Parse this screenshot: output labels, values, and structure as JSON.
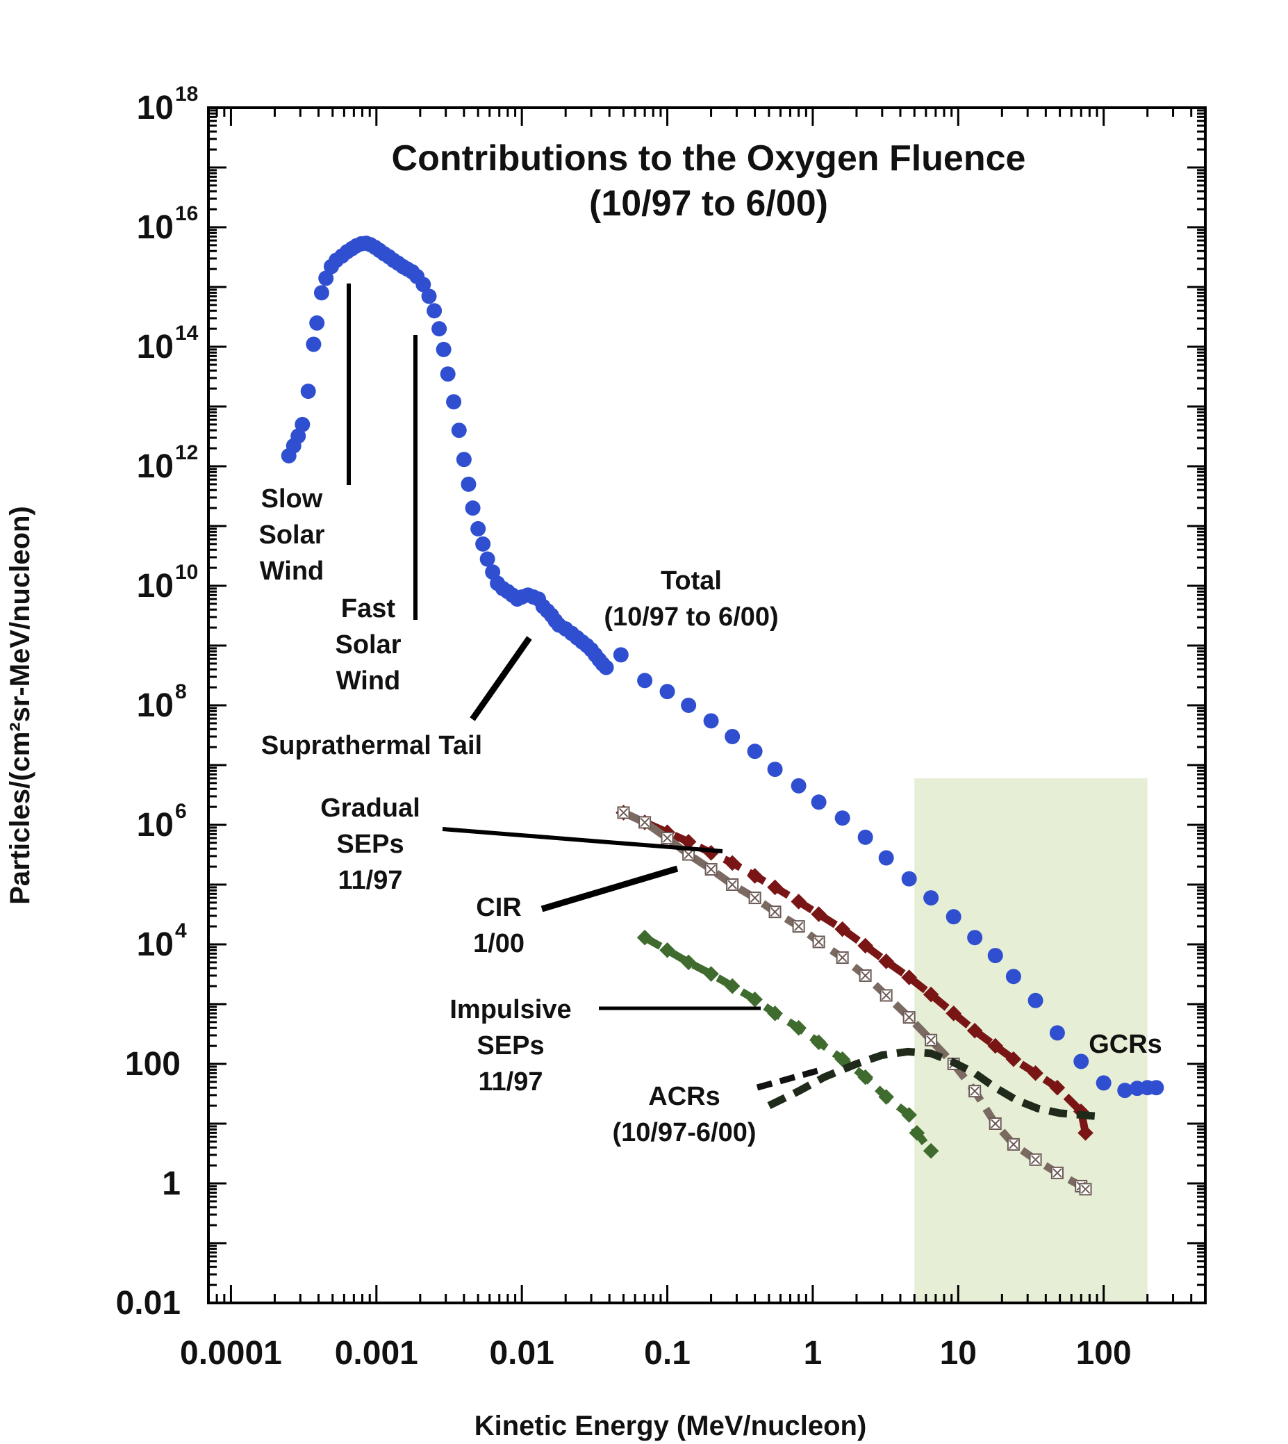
{
  "chart_data": {
    "type": "scatter",
    "title": "Contributions to the Oxygen Fluence",
    "subtitle": "(10/97 to 6/00)",
    "xlabel": "Kinetic Energy (MeV/nucleon)",
    "ylabel": "Particles/(cm²sr-MeV/nucleon)",
    "x_scale": "log",
    "y_scale": "log",
    "xlim": [
      7e-05,
      500
    ],
    "ylim": [
      0.01,
      1e+18
    ],
    "x_ticks": [
      {
        "value": 0.0001,
        "label": "0.0001"
      },
      {
        "value": 0.001,
        "label": "0.001"
      },
      {
        "value": 0.01,
        "label": "0.01"
      },
      {
        "value": 0.1,
        "label": "0.1"
      },
      {
        "value": 1,
        "label": "1"
      },
      {
        "value": 10,
        "label": "10"
      },
      {
        "value": 100,
        "label": "100"
      }
    ],
    "y_ticks": [
      {
        "value": 0.01,
        "label": "0.01",
        "base": "",
        "exp": ""
      },
      {
        "value": 1,
        "label": "1",
        "base": "",
        "exp": ""
      },
      {
        "value": 100,
        "label": "100",
        "base": "",
        "exp": ""
      },
      {
        "value": 10000.0,
        "label": "",
        "base": "10",
        "exp": "4"
      },
      {
        "value": 1000000.0,
        "label": "",
        "base": "10",
        "exp": "6"
      },
      {
        "value": 100000000.0,
        "label": "",
        "base": "10",
        "exp": "8"
      },
      {
        "value": 10000000000.0,
        "label": "",
        "base": "10",
        "exp": "10"
      },
      {
        "value": 1000000000000.0,
        "label": "",
        "base": "10",
        "exp": "12"
      },
      {
        "value": 100000000000000.0,
        "label": "",
        "base": "10",
        "exp": "14"
      },
      {
        "value": 1e+16,
        "label": "",
        "base": "10",
        "exp": "16"
      },
      {
        "value": 1e+18,
        "label": "",
        "base": "10",
        "exp": "18"
      }
    ],
    "grid": false,
    "shaded_region": {
      "x": [
        5,
        200
      ],
      "y": [
        0.01,
        6000000.0
      ],
      "color": "#e6efd6"
    },
    "series": [
      {
        "key": "total",
        "color": "#2f4fd0",
        "style": "dots",
        "points": [
          [
            0.00025,
            1500000000000.0
          ],
          [
            0.00027,
            2200000000000.0
          ],
          [
            0.00029,
            3200000000000.0
          ],
          [
            0.00031,
            5000000000000.0
          ],
          [
            0.00034,
            18000000000000.0
          ],
          [
            0.00037,
            110000000000000.0
          ],
          [
            0.00039,
            250000000000000.0
          ],
          [
            0.00042,
            800000000000000.0
          ],
          [
            0.00045,
            1400000000000000.0
          ],
          [
            0.00049,
            2200000000000000.0
          ],
          [
            0.00053,
            2800000000000000.0
          ],
          [
            0.00058,
            3300000000000000.0
          ],
          [
            0.00063,
            3900000000000000.0
          ],
          [
            0.00068,
            4400000000000000.0
          ],
          [
            0.00073,
            4900000000000000.0
          ],
          [
            0.00079,
            5300000000000000.0
          ],
          [
            0.00085,
            5400000000000000.0
          ],
          [
            0.00091,
            5100000000000000.0
          ],
          [
            0.00098,
            4600000000000000.0
          ],
          [
            0.00105,
            4100000000000000.0
          ],
          [
            0.00113,
            3600000000000000.0
          ],
          [
            0.00122,
            3200000000000000.0
          ],
          [
            0.00131,
            2800000000000000.0
          ],
          [
            0.00141,
            2500000000000000.0
          ],
          [
            0.00152,
            2200000000000000.0
          ],
          [
            0.00163,
            2000000000000000.0
          ],
          [
            0.00176,
            1800000000000000.0
          ],
          [
            0.0019,
            1500000000000000.0
          ],
          [
            0.0021,
            1100000000000000.0
          ],
          [
            0.0023,
            700000000000000.0
          ],
          [
            0.0025,
            400000000000000.0
          ],
          [
            0.0027,
            200000000000000.0
          ],
          [
            0.0029,
            90000000000000.0
          ],
          [
            0.0031,
            35000000000000.0
          ],
          [
            0.0034,
            12000000000000.0
          ],
          [
            0.0037,
            4000000000000.0
          ],
          [
            0.004,
            1300000000000.0
          ],
          [
            0.0043,
            500000000000.0
          ],
          [
            0.0046,
            200000000000.0
          ],
          [
            0.005,
            90000000000.0
          ],
          [
            0.0054,
            50000000000.0
          ],
          [
            0.0058,
            28000000000.0
          ],
          [
            0.0063,
            17000000000.0
          ],
          [
            0.0068,
            11000000000.0
          ],
          [
            0.0074,
            9000000000.0
          ],
          [
            0.008,
            8000000000.0
          ],
          [
            0.0086,
            7000000000.0
          ],
          [
            0.0093,
            6000000000.0
          ],
          [
            0.01,
            6500000000.0
          ],
          [
            0.011,
            7000000000.0
          ],
          [
            0.012,
            6500000000.0
          ],
          [
            0.013,
            6000000000.0
          ],
          [
            0.014,
            4500000000.0
          ],
          [
            0.015,
            3800000000.0
          ],
          [
            0.016,
            3200000000.0
          ],
          [
            0.017,
            2600000000.0
          ],
          [
            0.018,
            2200000000.0
          ],
          [
            0.02,
            1900000000.0
          ],
          [
            0.022,
            1600000000.0
          ],
          [
            0.024,
            1350000000.0
          ],
          [
            0.026,
            1150000000.0
          ],
          [
            0.028,
            1000000000.0
          ],
          [
            0.03,
            850000000.0
          ],
          [
            0.032,
            700000000.0
          ],
          [
            0.034,
            580000000.0
          ],
          [
            0.036,
            490000000.0
          ],
          [
            0.038,
            430000000.0
          ],
          [
            0.048,
            700000000.0
          ],
          [
            0.07,
            260000000.0
          ],
          [
            0.1,
            170000000.0
          ],
          [
            0.14,
            100000000.0
          ],
          [
            0.2,
            55000000.0
          ],
          [
            0.28,
            30000000.0
          ],
          [
            0.4,
            17000000.0
          ],
          [
            0.55,
            8500000.0
          ],
          [
            0.8,
            4500000.0
          ],
          [
            1.1,
            2400000.0
          ],
          [
            1.6,
            1300000.0
          ],
          [
            2.3,
            620000.0
          ],
          [
            3.2,
            280000.0
          ],
          [
            4.6,
            125000.0
          ],
          [
            6.5,
            60000.0
          ],
          [
            9.3,
            29000.0
          ],
          [
            13,
            13000.0
          ],
          [
            18,
            6500.0
          ],
          [
            24,
            2900.0
          ],
          [
            34,
            1150.0
          ],
          [
            48,
            330
          ],
          [
            70,
            110
          ],
          [
            100,
            48
          ],
          [
            140,
            36
          ],
          [
            170,
            39
          ],
          [
            200,
            40
          ],
          [
            230,
            40
          ]
        ]
      },
      {
        "key": "gradual",
        "color": "#7a1515",
        "style": "dashed-markers",
        "points": [
          [
            0.05,
            1600000.0
          ],
          [
            0.07,
            1100000.0
          ],
          [
            0.1,
            750000.0
          ],
          [
            0.14,
            520000.0
          ],
          [
            0.2,
            340000.0
          ],
          [
            0.28,
            230000.0
          ],
          [
            0.4,
            140000.0
          ],
          [
            0.55,
            90000.0
          ],
          [
            0.8,
            52000.0
          ],
          [
            1.1,
            32000.0
          ],
          [
            1.6,
            18000.0
          ],
          [
            2.3,
            9500.0
          ],
          [
            3.2,
            5200.0
          ],
          [
            4.6,
            2800.0
          ],
          [
            6.5,
            1450.0
          ],
          [
            9.3,
            700
          ],
          [
            13,
            360
          ],
          [
            18,
            200
          ],
          [
            24,
            120
          ],
          [
            34,
            70
          ],
          [
            48,
            40
          ],
          [
            70,
            16
          ],
          [
            75,
            7
          ]
        ]
      },
      {
        "key": "cir",
        "color": "#7a6a62",
        "style": "dashed-x-markers",
        "points": [
          [
            0.05,
            1600000.0
          ],
          [
            0.07,
            1100000.0
          ],
          [
            0.1,
            600000.0
          ],
          [
            0.14,
            320000.0
          ],
          [
            0.2,
            180000.0
          ],
          [
            0.28,
            100000.0
          ],
          [
            0.4,
            60000.0
          ],
          [
            0.55,
            35000.0
          ],
          [
            0.8,
            20000.0
          ],
          [
            1.1,
            11000.0
          ],
          [
            1.6,
            6000.0
          ],
          [
            2.3,
            3000.0
          ],
          [
            3.2,
            1400.0
          ],
          [
            4.6,
            600
          ],
          [
            6.5,
            250
          ],
          [
            9.3,
            100
          ],
          [
            13,
            35
          ],
          [
            18,
            10
          ],
          [
            24,
            4.5
          ],
          [
            34,
            2.5
          ],
          [
            48,
            1.5
          ],
          [
            70,
            0.9
          ],
          [
            75,
            0.8
          ]
        ]
      },
      {
        "key": "impulsive",
        "color": "#3f6b2e",
        "style": "dashed-markers",
        "points": [
          [
            0.07,
            13000.0
          ],
          [
            0.1,
            8000.0
          ],
          [
            0.14,
            5000.0
          ],
          [
            0.2,
            3200.0
          ],
          [
            0.28,
            2000.0
          ],
          [
            0.4,
            1200.0
          ],
          [
            0.55,
            700
          ],
          [
            0.8,
            400
          ],
          [
            1.1,
            230
          ],
          [
            1.6,
            120
          ],
          [
            2.3,
            60
          ],
          [
            3.2,
            28
          ],
          [
            4.6,
            14
          ],
          [
            5.2,
            7
          ],
          [
            6.5,
            3.5
          ]
        ]
      },
      {
        "key": "acrs",
        "color": "#1f2a1a",
        "style": "dashed",
        "points": [
          [
            0.5,
            20
          ],
          [
            0.8,
            35
          ],
          [
            1.2,
            60
          ],
          [
            2,
            100
          ],
          [
            3,
            140
          ],
          [
            4.5,
            160
          ],
          [
            6.5,
            150
          ],
          [
            9,
            110
          ],
          [
            13,
            70
          ],
          [
            18,
            40
          ],
          [
            25,
            25
          ],
          [
            35,
            18
          ],
          [
            50,
            15
          ],
          [
            70,
            14
          ],
          [
            100,
            13
          ]
        ]
      }
    ],
    "annotations": [
      {
        "lines": [
          "Slow",
          "Solar",
          "Wind"
        ]
      },
      {
        "lines": [
          "Fast",
          "Solar",
          "Wind"
        ]
      },
      {
        "lines": [
          "Suprathermal Tail"
        ]
      },
      {
        "lines": [
          "Total",
          "(10/97 to 6/00)"
        ]
      },
      {
        "lines": [
          "Gradual",
          "SEPs",
          "11/97"
        ]
      },
      {
        "lines": [
          "CIR",
          "1/00"
        ]
      },
      {
        "lines": [
          "Impulsive",
          "SEPs",
          "11/97"
        ]
      },
      {
        "lines": [
          "ACRs",
          "(10/97-6/00)"
        ]
      },
      {
        "lines": [
          "GCRs"
        ]
      }
    ]
  }
}
